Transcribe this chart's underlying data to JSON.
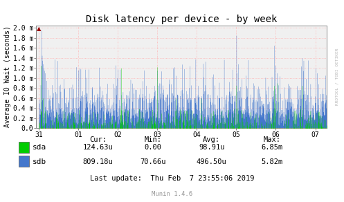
{
  "title": "Disk latency per device - by week",
  "ylabel": "Average IO Wait (seconds)",
  "background_color": "#FFFFFF",
  "plot_bg_color": "#F0F0F0",
  "grid_h_color": "#FFB0B0",
  "grid_v_color": "#FFB0B0",
  "title_color": "#000000",
  "sda_color": "#00CC00",
  "sdb_color": "#4477CC",
  "ytick_labels": [
    "0.0",
    "0.2 m",
    "0.4 m",
    "0.6 m",
    "0.8 m",
    "1.0 m",
    "1.2 m",
    "1.4 m",
    "1.6 m",
    "1.8 m",
    "2.0 m"
  ],
  "ytick_values": [
    0.0,
    0.0002,
    0.0004,
    0.0006,
    0.0008,
    0.001,
    0.0012,
    0.0014,
    0.0016,
    0.0018,
    0.002
  ],
  "xtick_labels": [
    "31",
    "01",
    "02",
    "03",
    "04",
    "05",
    "06",
    "07"
  ],
  "xtick_positions": [
    0,
    144,
    288,
    432,
    576,
    720,
    864,
    1008
  ],
  "vline_positions": [
    0,
    144,
    288,
    432,
    576,
    720,
    864,
    1008
  ],
  "xmin": -10,
  "xmax": 1050,
  "ymin": 0,
  "ymax": 0.00205,
  "n_points": 1080,
  "legend_entries": [
    "sda",
    "sdb"
  ],
  "stats_header": [
    "Cur:",
    "Min:",
    "Avg:",
    "Max:"
  ],
  "stats_cur": [
    "124.63u",
    "809.18u"
  ],
  "stats_min": [
    "0.00",
    "70.66u"
  ],
  "stats_avg": [
    "98.91u",
    "496.50u"
  ],
  "stats_max": [
    "6.85m",
    "5.82m"
  ],
  "last_update": "Last update:  Thu Feb  7 23:55:06 2019",
  "watermark": "RRDTOOL / TOBI OETIKER",
  "munin_version": "Munin 1.4.6",
  "font_family": "DejaVu Sans Mono",
  "title_fontsize": 10,
  "axis_fontsize": 7,
  "legend_fontsize": 8,
  "stats_fontsize": 7.5
}
